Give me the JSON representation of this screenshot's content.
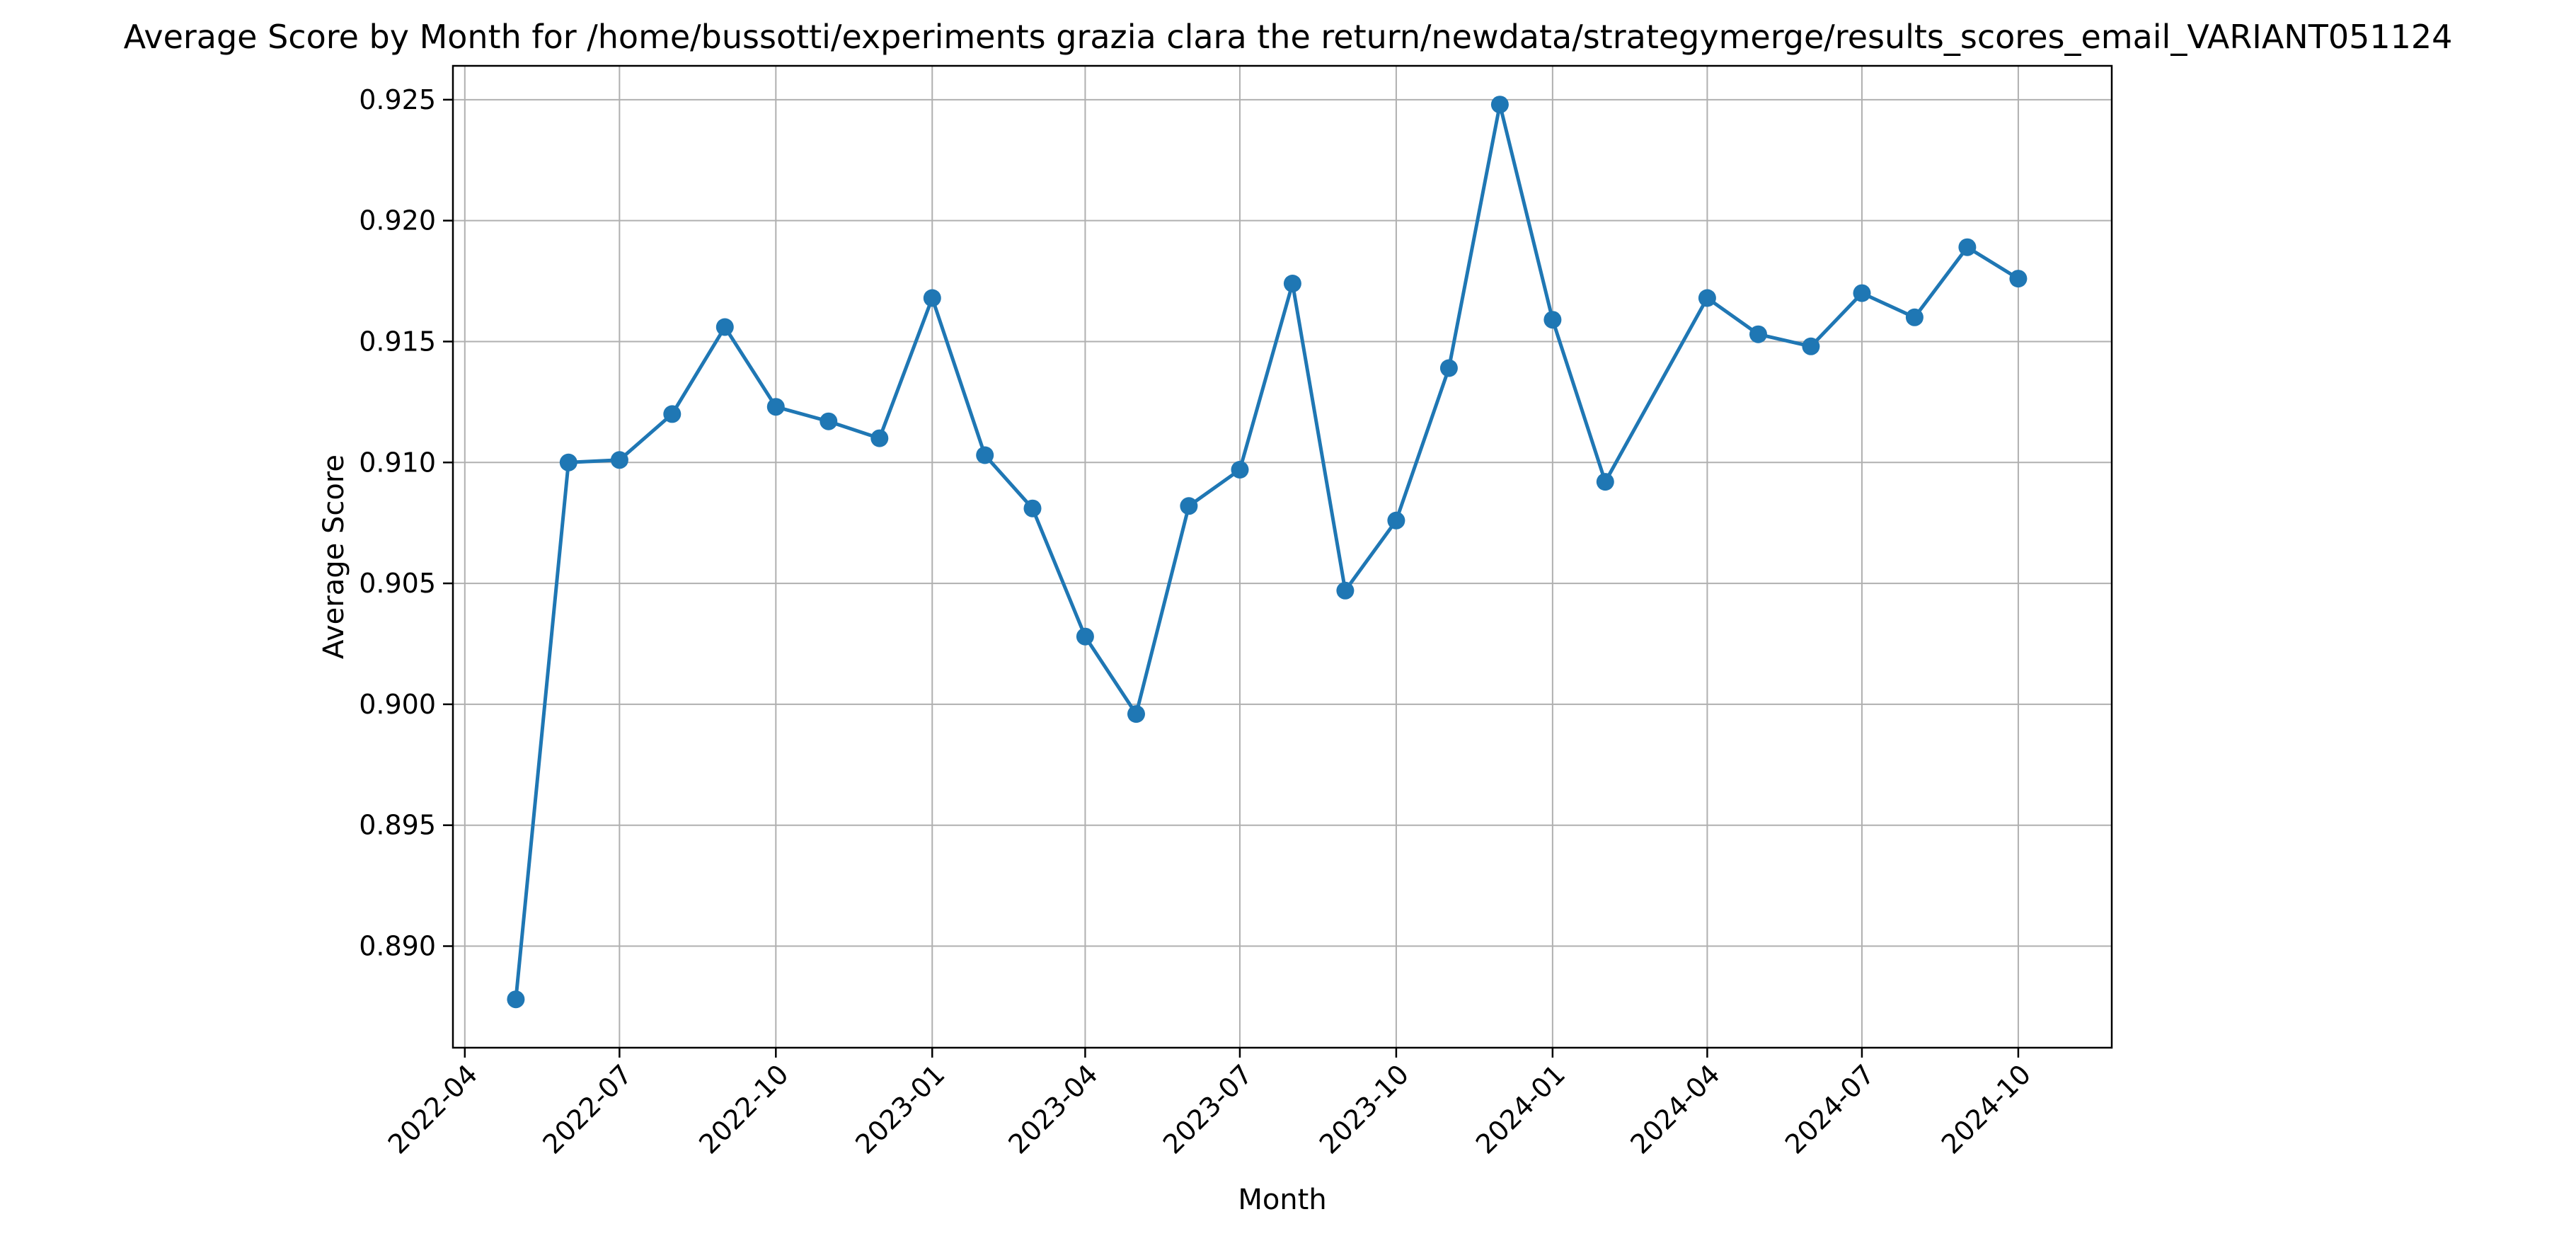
{
  "chart_data": {
    "type": "line",
    "title": "Average Score by Month for /home/bussotti/experiments grazia clara the return/newdata/strategymerge/results_scores_email_VARIANT051124",
    "xlabel": "Month",
    "ylabel": "Average Score",
    "x_axis_type": "date",
    "xlim": [
      "2022-03-25",
      "2024-11-25"
    ],
    "ylim": [
      0.8858,
      0.9264
    ],
    "grid": true,
    "x_ticks": [
      "2022-04",
      "2022-07",
      "2022-10",
      "2023-01",
      "2023-04",
      "2023-07",
      "2023-10",
      "2024-01",
      "2024-04",
      "2024-07",
      "2024-10"
    ],
    "y_ticks": [
      "0.890",
      "0.895",
      "0.900",
      "0.905",
      "0.910",
      "0.915",
      "0.920",
      "0.925"
    ],
    "series": [
      {
        "color": "#1f77b4",
        "marker": "circle",
        "points": [
          {
            "x": "2022-05-01",
            "y": 0.8878
          },
          {
            "x": "2022-06-01",
            "y": 0.91
          },
          {
            "x": "2022-07-01",
            "y": 0.9101
          },
          {
            "x": "2022-08-01",
            "y": 0.912
          },
          {
            "x": "2022-09-01",
            "y": 0.9156
          },
          {
            "x": "2022-10-01",
            "y": 0.9123
          },
          {
            "x": "2022-11-01",
            "y": 0.9117
          },
          {
            "x": "2022-12-01",
            "y": 0.911
          },
          {
            "x": "2023-01-01",
            "y": 0.9168
          },
          {
            "x": "2023-02-01",
            "y": 0.9103
          },
          {
            "x": "2023-03-01",
            "y": 0.9081
          },
          {
            "x": "2023-04-01",
            "y": 0.9028
          },
          {
            "x": "2023-05-01",
            "y": 0.8996
          },
          {
            "x": "2023-06-01",
            "y": 0.9082
          },
          {
            "x": "2023-07-01",
            "y": 0.9097
          },
          {
            "x": "2023-08-01",
            "y": 0.9174
          },
          {
            "x": "2023-09-01",
            "y": 0.9047
          },
          {
            "x": "2023-10-01",
            "y": 0.9076
          },
          {
            "x": "2023-11-01",
            "y": 0.9139
          },
          {
            "x": "2023-12-01",
            "y": 0.9248
          },
          {
            "x": "2024-01-01",
            "y": 0.9159
          },
          {
            "x": "2024-02-01",
            "y": 0.9092
          },
          {
            "x": "2024-04-01",
            "y": 0.9168
          },
          {
            "x": "2024-05-01",
            "y": 0.9153
          },
          {
            "x": "2024-06-01",
            "y": 0.9148
          },
          {
            "x": "2024-07-01",
            "y": 0.917
          },
          {
            "x": "2024-08-01",
            "y": 0.916
          },
          {
            "x": "2024-09-01",
            "y": 0.9189
          },
          {
            "x": "2024-10-01",
            "y": 0.9176
          }
        ]
      }
    ]
  }
}
